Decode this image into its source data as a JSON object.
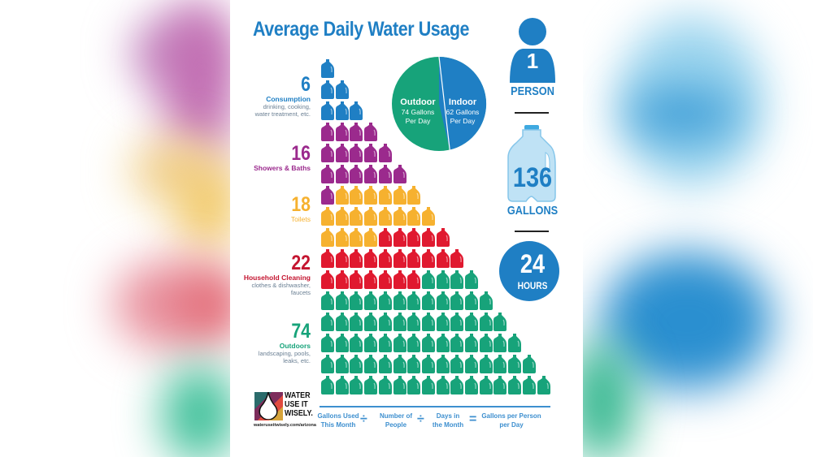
{
  "title": "Average Daily Water Usage",
  "categories": [
    {
      "value": "6",
      "label": "Consumption",
      "sub": [
        "drinking, cooking,",
        "water treatment, etc."
      ],
      "color": "#1f7fc4"
    },
    {
      "value": "16",
      "label": "Showers & Baths",
      "sub": [],
      "color": "#9b2a8d"
    },
    {
      "value": "18",
      "label": "Toilets",
      "sub": [],
      "color": "#f6b12f"
    },
    {
      "value": "22",
      "label": "Household Cleaning",
      "sub": [
        "clothes & dishwasher,",
        "faucets"
      ],
      "color": "#e0192f"
    },
    {
      "value": "74",
      "label": "Outdoors",
      "sub": [
        "landscaping, pools,",
        "leaks, etc."
      ],
      "color": "#17a37a"
    }
  ],
  "pie": {
    "outdoor": {
      "label": "Outdoor",
      "line1": "74 Gallons",
      "line2": "Per Day",
      "color": "#17a37a"
    },
    "indoor": {
      "label": "Indoor",
      "line1": "62 Gallons",
      "line2": "Per Day",
      "color": "#1f7fc4"
    }
  },
  "summary": {
    "person_number": "1",
    "person_label": "PERSON",
    "gallons_number": "136",
    "gallons_label": "GALLONS",
    "hours_number": "24",
    "hours_label": "HOURS"
  },
  "logo": {
    "line1": "WATER",
    "line2": "USE IT",
    "line3": "WISELY.",
    "url": "wateruseitwisely.com/arizona"
  },
  "formula": {
    "term1": [
      "Gallons Used",
      "This Month"
    ],
    "op1": "÷",
    "term2": [
      "Number of",
      "People"
    ],
    "op2": "÷",
    "term3": [
      "Days in",
      "the Month"
    ],
    "eq": "=",
    "result": [
      "Gallons per Person",
      "per Day"
    ]
  },
  "chart_data": {
    "type": "pie",
    "title": "Average Daily Water Usage",
    "unit": "gallons per person per day",
    "total": 136,
    "categories": [
      "Consumption",
      "Showers & Baths",
      "Toilets",
      "Household Cleaning",
      "Outdoors"
    ],
    "values": [
      6,
      16,
      18,
      22,
      74
    ],
    "pie_split": {
      "categories": [
        "Outdoor",
        "Indoor"
      ],
      "values": [
        74,
        62
      ]
    },
    "pictogram": {
      "rows": 16,
      "jugs_per_row": "row index (1..16)",
      "total_jugs": 136
    }
  }
}
